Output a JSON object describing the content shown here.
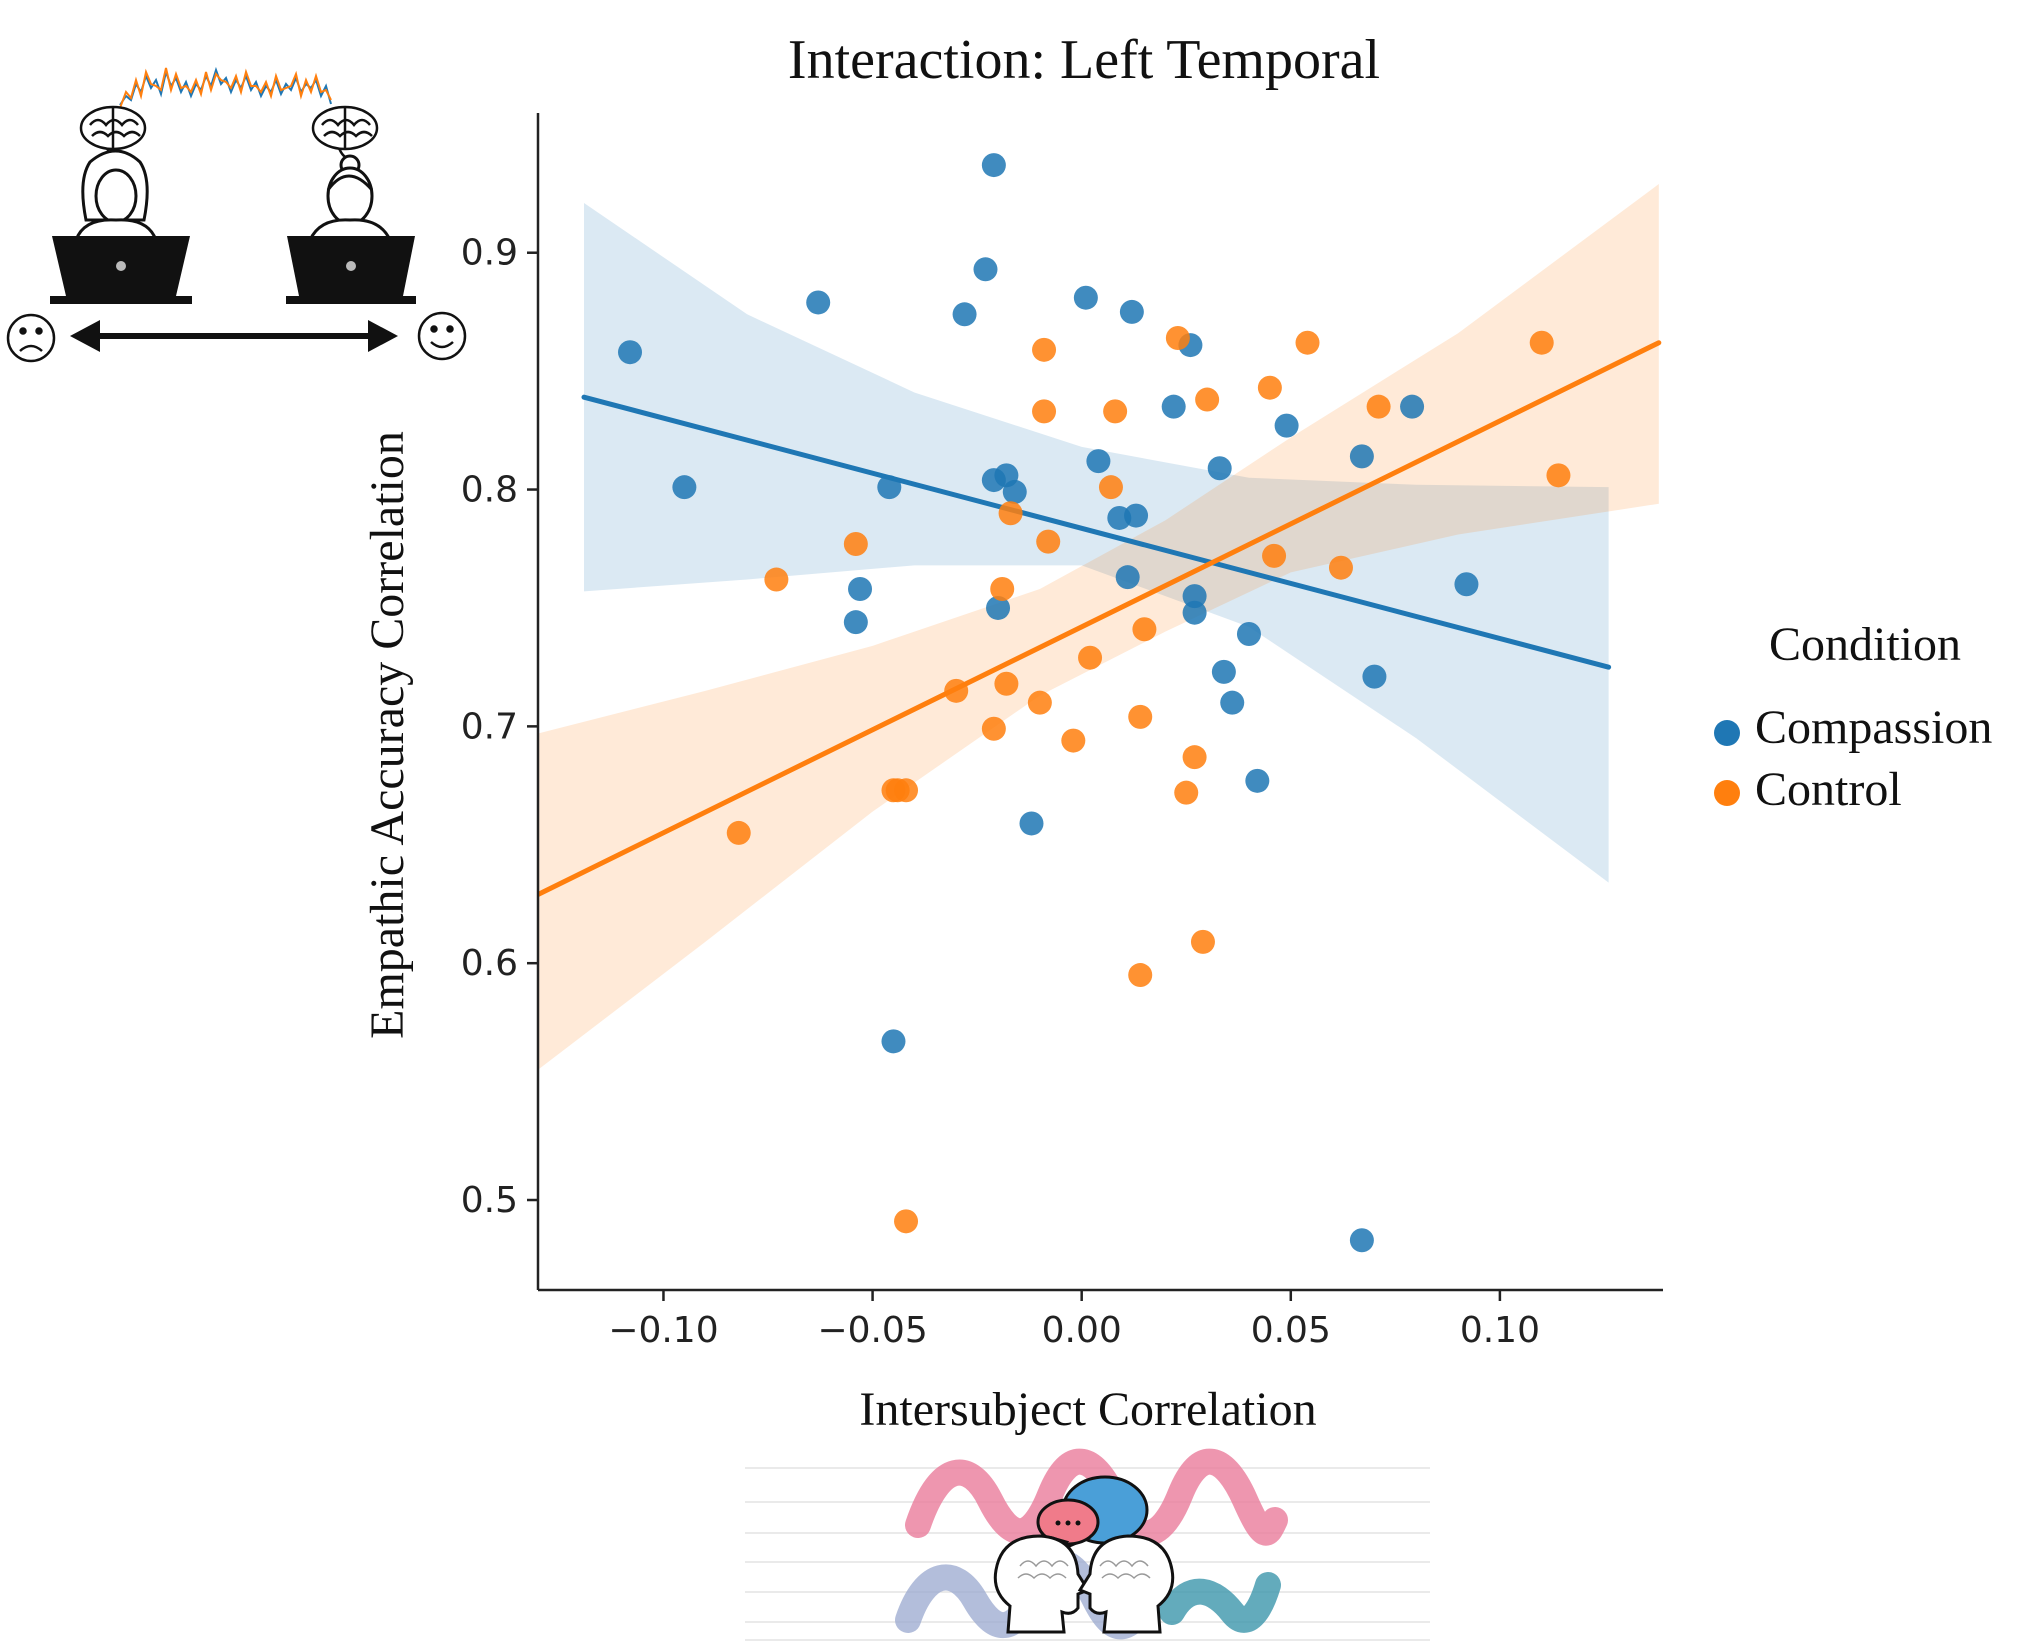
{
  "chart_data": {
    "type": "scatter",
    "title": "Interaction: Left Temporal",
    "xlabel": "Intersubject Correlation",
    "ylabel": "Empathic Accuracy Correlation",
    "xlim": [
      -0.13,
      0.139
    ],
    "ylim": [
      0.462,
      0.959
    ],
    "xticks": [
      -0.1,
      -0.05,
      0.0,
      0.05,
      0.1
    ],
    "xtick_labels": [
      "−0.10",
      "−0.05",
      "0.00",
      "0.05",
      "0.10"
    ],
    "yticks": [
      0.5,
      0.6,
      0.7,
      0.8,
      0.9
    ],
    "ytick_labels": [
      "0.5",
      "0.6",
      "0.7",
      "0.8",
      "0.9"
    ],
    "grid": false,
    "legend": {
      "title": "Condition",
      "position": "right"
    },
    "series": [
      {
        "name": "Compassion",
        "color": "#1f77b4",
        "points": [
          [
            -0.108,
            0.858
          ],
          [
            -0.095,
            0.801
          ],
          [
            -0.063,
            0.879
          ],
          [
            -0.054,
            0.744
          ],
          [
            -0.053,
            0.758
          ],
          [
            -0.046,
            0.801
          ],
          [
            -0.045,
            0.567
          ],
          [
            -0.028,
            0.874
          ],
          [
            -0.023,
            0.893
          ],
          [
            -0.021,
            0.937
          ],
          [
            -0.021,
            0.804
          ],
          [
            -0.02,
            0.75
          ],
          [
            -0.018,
            0.806
          ],
          [
            -0.016,
            0.799
          ],
          [
            -0.012,
            0.659
          ],
          [
            0.001,
            0.881
          ],
          [
            0.004,
            0.812
          ],
          [
            0.009,
            0.788
          ],
          [
            0.011,
            0.763
          ],
          [
            0.012,
            0.875
          ],
          [
            0.013,
            0.789
          ],
          [
            0.022,
            0.835
          ],
          [
            0.026,
            0.861
          ],
          [
            0.027,
            0.755
          ],
          [
            0.027,
            0.748
          ],
          [
            0.033,
            0.809
          ],
          [
            0.034,
            0.723
          ],
          [
            0.036,
            0.71
          ],
          [
            0.04,
            0.739
          ],
          [
            0.042,
            0.677
          ],
          [
            0.049,
            0.827
          ],
          [
            0.067,
            0.814
          ],
          [
            0.067,
            0.483
          ],
          [
            0.07,
            0.721
          ],
          [
            0.079,
            0.835
          ],
          [
            0.092,
            0.76
          ]
        ],
        "fit": {
          "x": [
            -0.119,
            0.126
          ],
          "y": [
            0.839,
            0.725
          ]
        },
        "ci": {
          "x": [
            -0.119,
            -0.08,
            -0.04,
            0.0,
            0.04,
            0.08,
            0.126
          ],
          "upper": [
            0.921,
            0.874,
            0.841,
            0.818,
            0.805,
            0.802,
            0.801
          ],
          "lower": [
            0.757,
            0.762,
            0.768,
            0.768,
            0.742,
            0.695,
            0.634
          ]
        }
      },
      {
        "name": "Control",
        "color": "#ff7f0e",
        "points": [
          [
            -0.082,
            0.655
          ],
          [
            -0.073,
            0.762
          ],
          [
            -0.054,
            0.777
          ],
          [
            -0.045,
            0.673
          ],
          [
            -0.044,
            0.673
          ],
          [
            -0.042,
            0.673
          ],
          [
            -0.042,
            0.491
          ],
          [
            -0.03,
            0.715
          ],
          [
            -0.021,
            0.699
          ],
          [
            -0.019,
            0.758
          ],
          [
            -0.018,
            0.718
          ],
          [
            -0.017,
            0.79
          ],
          [
            -0.01,
            0.71
          ],
          [
            -0.009,
            0.859
          ],
          [
            -0.009,
            0.833
          ],
          [
            -0.008,
            0.778
          ],
          [
            -0.002,
            0.694
          ],
          [
            0.002,
            0.729
          ],
          [
            0.007,
            0.801
          ],
          [
            0.008,
            0.833
          ],
          [
            0.014,
            0.704
          ],
          [
            0.014,
            0.595
          ],
          [
            0.015,
            0.741
          ],
          [
            0.023,
            0.864
          ],
          [
            0.025,
            0.672
          ],
          [
            0.027,
            0.687
          ],
          [
            0.029,
            0.609
          ],
          [
            0.03,
            0.838
          ],
          [
            0.045,
            0.843
          ],
          [
            0.046,
            0.772
          ],
          [
            0.054,
            0.862
          ],
          [
            0.062,
            0.767
          ],
          [
            0.071,
            0.835
          ],
          [
            0.11,
            0.862
          ],
          [
            0.114,
            0.806
          ]
        ],
        "fit": {
          "x": [
            -0.13,
            0.138
          ],
          "y": [
            0.629,
            0.862
          ]
        },
        "ci": {
          "x": [
            -0.13,
            -0.09,
            -0.05,
            -0.01,
            0.02,
            0.05,
            0.09,
            0.138
          ],
          "upper": [
            0.697,
            0.715,
            0.734,
            0.758,
            0.787,
            0.822,
            0.866,
            0.929
          ],
          "lower": [
            0.555,
            0.609,
            0.664,
            0.713,
            0.74,
            0.765,
            0.781,
            0.794
          ]
        }
      }
    ]
  },
  "decorations": {
    "top_left": {
      "left_face": "frown-face",
      "right_face": "smile-face",
      "arrow": "double-arrow",
      "people": "people-at-laptops",
      "signal": "synchronized-brain-signals"
    },
    "bottom": {
      "illustration": "two-heads-conversation-waves"
    }
  }
}
